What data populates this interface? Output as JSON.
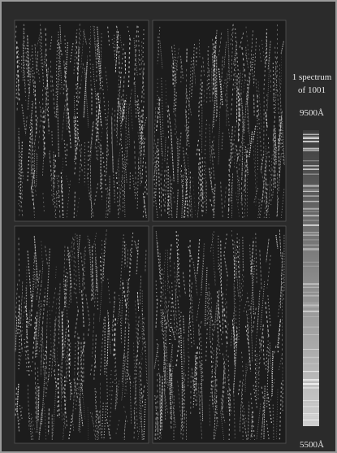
{
  "caption": {
    "line1": "1 spectrum",
    "line2": "of 1001"
  },
  "strip": {
    "top_label": "9500Å",
    "bottom_label": "5500Å"
  }
}
